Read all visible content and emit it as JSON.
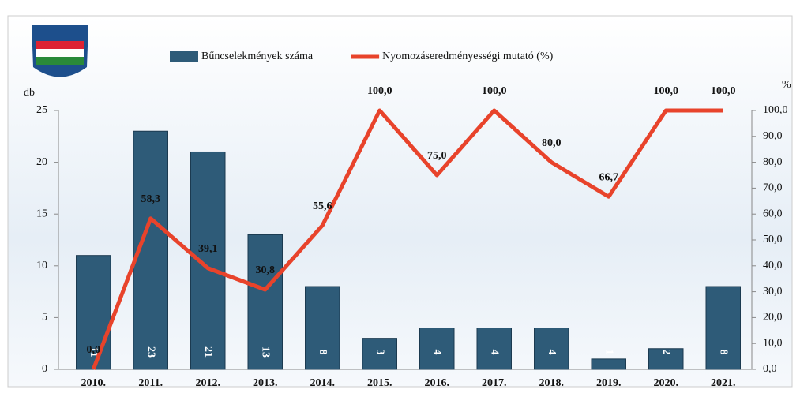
{
  "chart_data": {
    "type": "bar",
    "categories": [
      "2010.",
      "2011.",
      "2012.",
      "2013.",
      "2014.",
      "2015.",
      "2016.",
      "2017.",
      "2018.",
      "2019.",
      "2020.",
      "2021."
    ],
    "series": [
      {
        "name": "Bűncselekmények száma",
        "color": "#2e5b78",
        "type": "bar",
        "axis": "y",
        "values": [
          11,
          23,
          21,
          13,
          8,
          3,
          4,
          4,
          4,
          1,
          2,
          8
        ]
      },
      {
        "name": "Nyomozáseredményességi mutató (%)",
        "color": "#e8432b",
        "type": "line",
        "axis": "y2",
        "values": [
          0.0,
          58.3,
          39.1,
          30.8,
          55.6,
          100.0,
          75.0,
          100.0,
          80.0,
          66.7,
          100.0,
          100.0
        ],
        "value_labels": [
          "0,0",
          "58,3",
          "39,1",
          "30,8",
          "55,6",
          "100,0",
          "75,0",
          "100,0",
          "80,0",
          "66,7",
          "100,0",
          "100,0"
        ]
      }
    ],
    "ylabel": "db",
    "y2label": "%",
    "ylim": [
      0,
      25
    ],
    "yticks": [
      0,
      5,
      10,
      15,
      20,
      25
    ],
    "y2lim": [
      0,
      100
    ],
    "y2ticks": [
      {
        "value": 0,
        "label": "0,0"
      },
      {
        "value": 10,
        "label": "10,0"
      },
      {
        "value": 20,
        "label": "20,0"
      },
      {
        "value": 30,
        "label": "30,0"
      },
      {
        "value": 40,
        "label": "40,0"
      },
      {
        "value": 50,
        "label": "50,0"
      },
      {
        "value": 60,
        "label": "60,0"
      },
      {
        "value": 70,
        "label": "70,0"
      },
      {
        "value": 80,
        "label": "80,0"
      },
      {
        "value": 90,
        "label": "90,0"
      },
      {
        "value": 100,
        "label": "100,0"
      }
    ]
  }
}
